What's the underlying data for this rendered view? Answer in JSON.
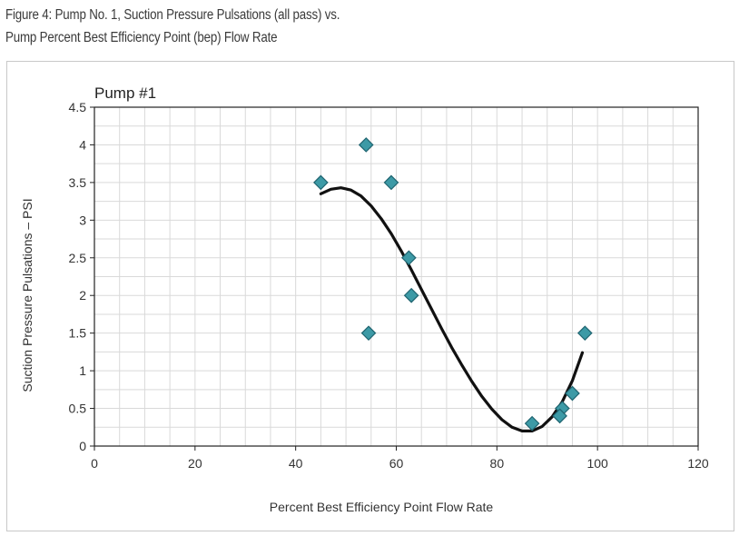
{
  "figure_caption": {
    "line1": "Figure 4: Pump No. 1, Suction Pressure Pulsations (all pass) vs.",
    "line2": "Pump Percent Best Efficiency Point (bep) Flow Rate"
  },
  "colors": {
    "marker": "#3d9aa6",
    "marker_stroke": "#1f6470",
    "trendline": "#111111",
    "grid": "#d9d9d9",
    "axis": "#222222"
  },
  "chart_data": {
    "type": "scatter",
    "title": "Pump #1",
    "xlabel": "Percent Best Efficiency Point Flow Rate",
    "ylabel": "Suction Pressure Pulsations – PSI",
    "xlim": [
      0,
      120
    ],
    "ylim": [
      0,
      4.5
    ],
    "x_ticks": [
      "0",
      "20",
      "40",
      "60",
      "80",
      "100",
      "120"
    ],
    "y_ticks": [
      "0",
      "0.5",
      "1",
      "1.5",
      "2",
      "2.5",
      "3",
      "3.5",
      "4",
      "4.5"
    ],
    "x_tick_values": [
      0,
      20,
      40,
      60,
      80,
      100,
      120
    ],
    "y_tick_values": [
      0,
      0.5,
      1,
      1.5,
      2,
      2.5,
      3,
      3.5,
      4,
      4.5
    ],
    "minor_x_step": 5,
    "minor_y_step": 0.25,
    "grid": true,
    "legend": "none",
    "points": [
      {
        "x": 45,
        "y": 3.5
      },
      {
        "x": 54,
        "y": 4.0
      },
      {
        "x": 59,
        "y": 3.5
      },
      {
        "x": 54.5,
        "y": 1.5
      },
      {
        "x": 62.5,
        "y": 2.5
      },
      {
        "x": 63,
        "y": 2.0
      },
      {
        "x": 87,
        "y": 0.3
      },
      {
        "x": 93,
        "y": 0.5
      },
      {
        "x": 92.5,
        "y": 0.4
      },
      {
        "x": 95,
        "y": 0.7
      },
      {
        "x": 97.5,
        "y": 1.5
      }
    ],
    "trendline": {
      "type": "polynomial",
      "points": [
        {
          "x": 45,
          "y": 3.35
        },
        {
          "x": 47,
          "y": 3.41
        },
        {
          "x": 49,
          "y": 3.43
        },
        {
          "x": 51,
          "y": 3.4
        },
        {
          "x": 53,
          "y": 3.32
        },
        {
          "x": 55,
          "y": 3.19
        },
        {
          "x": 57,
          "y": 3.02
        },
        {
          "x": 59,
          "y": 2.82
        },
        {
          "x": 61,
          "y": 2.59
        },
        {
          "x": 63,
          "y": 2.34
        },
        {
          "x": 65,
          "y": 2.08
        },
        {
          "x": 67,
          "y": 1.82
        },
        {
          "x": 69,
          "y": 1.56
        },
        {
          "x": 71,
          "y": 1.31
        },
        {
          "x": 73,
          "y": 1.08
        },
        {
          "x": 75,
          "y": 0.86
        },
        {
          "x": 77,
          "y": 0.66
        },
        {
          "x": 79,
          "y": 0.49
        },
        {
          "x": 81,
          "y": 0.35
        },
        {
          "x": 83,
          "y": 0.25
        },
        {
          "x": 85,
          "y": 0.2
        },
        {
          "x": 87,
          "y": 0.2
        },
        {
          "x": 89,
          "y": 0.26
        },
        {
          "x": 91,
          "y": 0.39
        },
        {
          "x": 93,
          "y": 0.59
        },
        {
          "x": 95,
          "y": 0.87
        },
        {
          "x": 97,
          "y": 1.24
        }
      ]
    }
  }
}
